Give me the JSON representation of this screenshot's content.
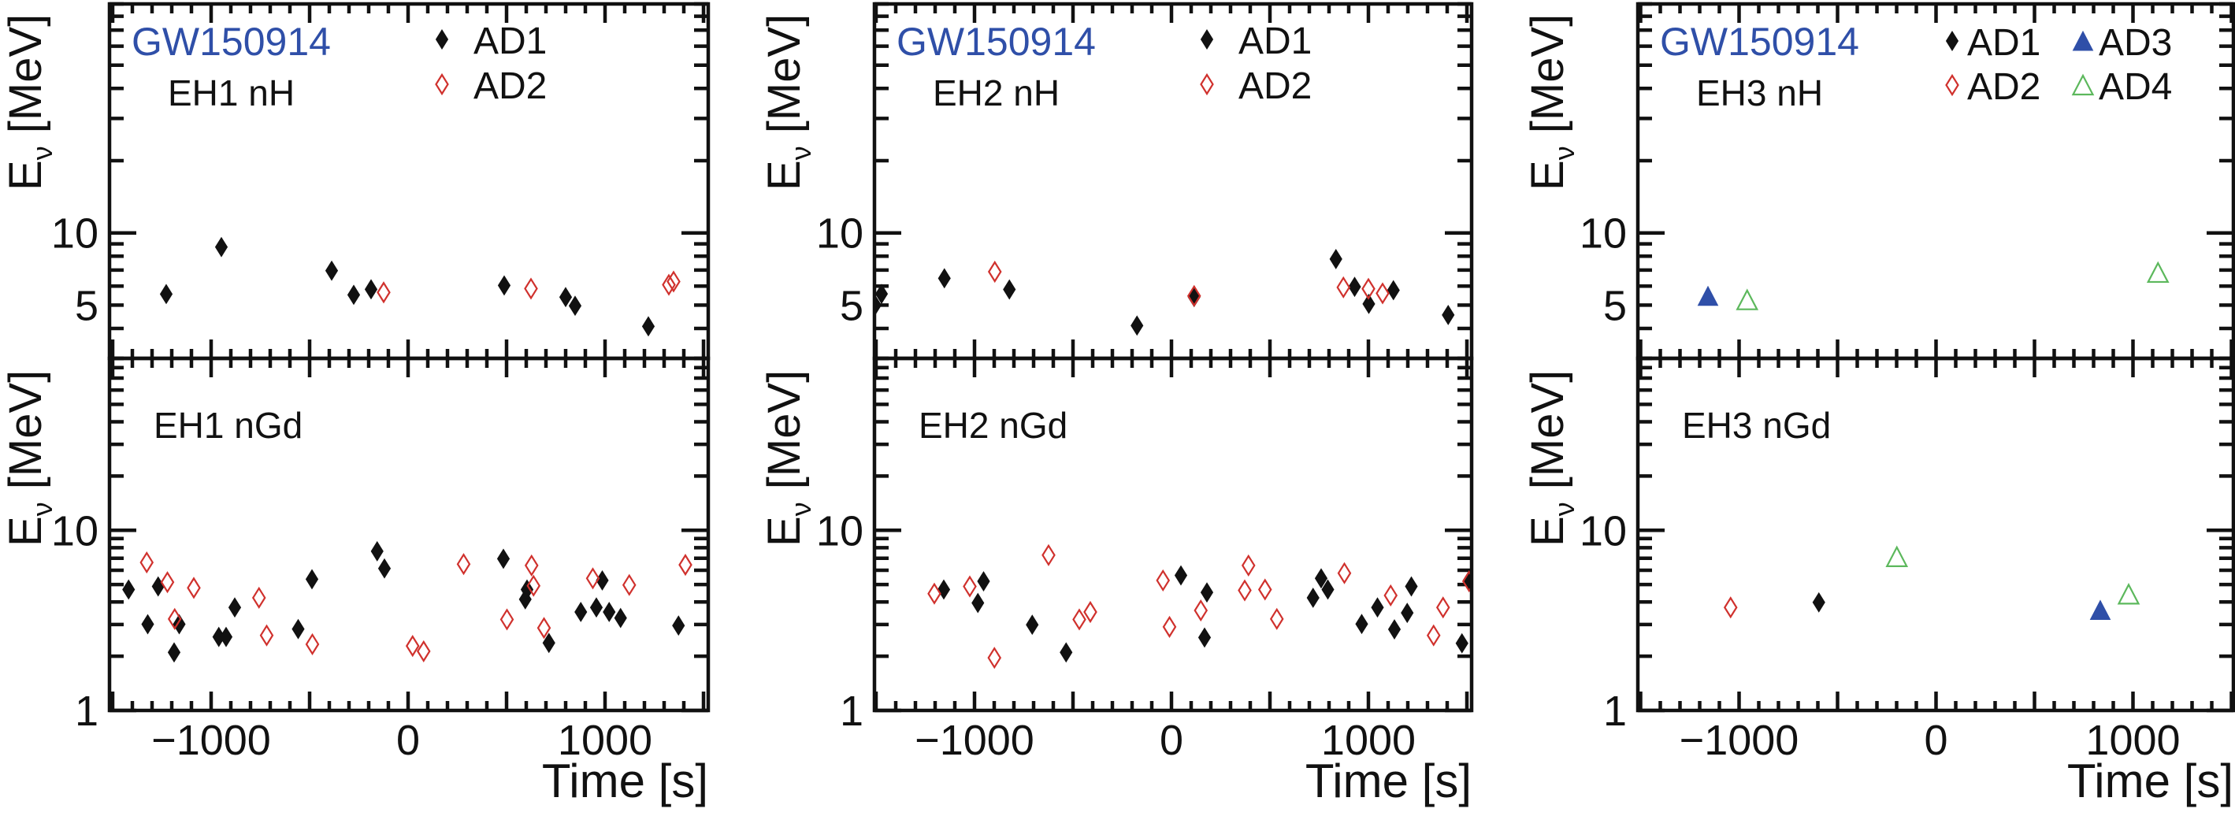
{
  "chart_data": [
    {
      "type": "scatter",
      "panel": "EH1 nH",
      "title": "GW150914",
      "label": "EH1 nH",
      "xlabel": "Time [s]",
      "ylabel": "Eν [MeV]",
      "yscale": "log",
      "xlim": [
        -1516,
        1524
      ],
      "ylim": [
        3,
        90
      ],
      "xticks": [
        -1000,
        0,
        1000
      ],
      "xtick_labels": [
        "−1000",
        "0",
        "1000"
      ],
      "yticks": [
        5,
        10
      ],
      "ytick_labels": [
        "5",
        "10"
      ],
      "legend": [
        "AD1",
        "AD2"
      ],
      "legend_position": "top",
      "series": [
        {
          "name": "AD1",
          "marker": "filled-diamond",
          "color": "#111111",
          "x": [
            -1228,
            -948,
            -388,
            -276,
            -188,
            488,
            800,
            848,
            1220
          ],
          "y": [
            5.56,
            8.73,
            6.96,
            5.52,
            5.82,
            6.04,
            5.4,
            4.97,
            4.08
          ]
        },
        {
          "name": "AD2",
          "marker": "open-diamond",
          "color": "#d0312d",
          "x": [
            -124,
            624,
            1324,
            1348
          ],
          "y": [
            5.65,
            5.86,
            6.08,
            6.27
          ]
        }
      ]
    },
    {
      "type": "scatter",
      "panel": "EH1 nGd",
      "label": "EH1 nGd",
      "xlabel": "Time [s]",
      "ylabel": "Eν [MeV]",
      "yscale": "log",
      "xlim": [
        -1516,
        1524
      ],
      "ylim": [
        1,
        90
      ],
      "xticks": [
        -1000,
        0,
        1000
      ],
      "xtick_labels": [
        "−1000",
        "0",
        "1000"
      ],
      "yticks": [
        1,
        10
      ],
      "ytick_labels": [
        "1",
        "10"
      ],
      "series": [
        {
          "name": "AD1",
          "marker": "filled-diamond",
          "color": "#111111",
          "x": [
            -1419,
            -1322,
            -1269,
            -1188,
            -1162,
            -961,
            -924,
            -880,
            -558,
            -488,
            -157,
            -120,
            484,
            595,
            604,
            715,
            877,
            956,
            986,
            1021,
            1079,
            1373
          ],
          "y": [
            4.69,
            3.01,
            4.88,
            2.1,
            3.01,
            2.56,
            2.56,
            3.73,
            2.83,
            5.35,
            7.65,
            6.14,
            6.95,
            4.14,
            4.69,
            2.37,
            3.52,
            3.73,
            5.27,
            3.52,
            3.26,
            2.96
          ]
        },
        {
          "name": "AD2",
          "marker": "open-diamond",
          "color": "#d0312d",
          "x": [
            -1327,
            -1222,
            -1088,
            -1185,
            -757,
            -718,
            -486,
            23,
            79,
            282,
            502,
            627,
            637,
            690,
            938,
            1123,
            1408
          ],
          "y": [
            6.63,
            5.15,
            4.79,
            3.22,
            4.22,
            2.61,
            2.33,
            2.28,
            2.13,
            6.49,
            3.2,
            6.38,
            4.92,
            2.87,
            5.41,
            4.97,
            6.43
          ]
        }
      ]
    },
    {
      "type": "scatter",
      "panel": "EH2 nH",
      "title": "GW150914",
      "label": "EH2 nH",
      "xlabel": "Time [s]",
      "ylabel": "Eν [MeV]",
      "yscale": "log",
      "xlim": [
        -1508,
        1524
      ],
      "ylim": [
        3,
        90
      ],
      "xticks": [
        -1000,
        0,
        1000
      ],
      "xtick_labels": [
        "−1000",
        "0",
        "1000"
      ],
      "yticks": [
        5,
        10
      ],
      "ytick_labels": [
        "5",
        "10"
      ],
      "legend": [
        "AD1",
        "AD2"
      ],
      "legend_position": "top",
      "series": [
        {
          "name": "AD1",
          "marker": "filled-diamond",
          "color": "#111111",
          "x": [
            -1504,
            -1472,
            -1153,
            -823,
            -175,
            115,
            835,
            930,
            1002,
            1127,
            1405
          ],
          "y": [
            5.0,
            5.57,
            6.47,
            5.81,
            4.11,
            5.4,
            7.78,
            5.96,
            5.06,
            5.77,
            4.55
          ]
        },
        {
          "name": "AD2",
          "marker": "open-diamond",
          "color": "#d0312d",
          "x": [
            -897,
            115,
            873,
            1000,
            1072
          ],
          "y": [
            6.89,
            5.46,
            5.93,
            5.85,
            5.6
          ]
        }
      ]
    },
    {
      "type": "scatter",
      "panel": "EH2 nGd",
      "label": "EH2 nGd",
      "xlabel": "Time [s]",
      "ylabel": "Eν [MeV]",
      "yscale": "log",
      "xlim": [
        -1508,
        1524
      ],
      "ylim": [
        1,
        90
      ],
      "xticks": [
        -1000,
        0,
        1000
      ],
      "xtick_labels": [
        "−1000",
        "0",
        "1000"
      ],
      "yticks": [
        1,
        10
      ],
      "ytick_labels": [
        "1",
        "10"
      ],
      "series": [
        {
          "name": "AD1",
          "marker": "filled-diamond",
          "color": "#111111",
          "x": [
            -1156,
            -983,
            -954,
            -707,
            -535,
            48,
            180,
            168,
            719,
            760,
            794,
            966,
            1046,
            1132,
            1197,
            1218,
            1475,
            1511
          ],
          "y": [
            4.69,
            3.95,
            5.21,
            2.99,
            2.1,
            5.62,
            4.52,
            2.54,
            4.22,
            5.41,
            4.69,
            3.02,
            3.73,
            2.82,
            3.48,
            4.88,
            2.36,
            5.27
          ]
        },
        {
          "name": "AD2",
          "marker": "open-diamond",
          "color": "#d0312d",
          "x": [
            -1204,
            -1024,
            -899,
            -624,
            -468,
            -412,
            -43,
            -10,
            149,
            372,
            391,
            475,
            535,
            878,
            1113,
            1331,
            1379,
            1511
          ],
          "y": [
            4.45,
            4.88,
            1.96,
            7.28,
            3.2,
            3.52,
            5.27,
            2.91,
            3.59,
            4.64,
            6.38,
            4.69,
            3.22,
            5.78,
            4.35,
            2.61,
            3.73,
            5.21
          ]
        }
      ]
    },
    {
      "type": "scatter",
      "panel": "EH3 nH",
      "title": "GW150914",
      "label": "EH3 nH",
      "xlabel": "Time [s]",
      "ylabel": "Eν [MeV]",
      "yscale": "log",
      "xlim": [
        -1514,
        1510
      ],
      "ylim": [
        3,
        90
      ],
      "xticks": [
        -1000,
        0,
        1000
      ],
      "xtick_labels": [
        "−1000",
        "0",
        "1000"
      ],
      "yticks": [
        5,
        10
      ],
      "ytick_labels": [
        "5",
        "10"
      ],
      "legend": [
        "AD1",
        "AD2",
        "AD3",
        "AD4"
      ],
      "legend_position": "top-right",
      "series": [
        {
          "name": "AD1",
          "marker": "filled-diamond",
          "color": "#111111",
          "x": [],
          "y": []
        },
        {
          "name": "AD2",
          "marker": "open-diamond",
          "color": "#d0312d",
          "x": [],
          "y": []
        },
        {
          "name": "AD3",
          "marker": "filled-triangle",
          "color": "#2f4fa8",
          "x": [
            -1158
          ],
          "y": [
            5.46
          ]
        },
        {
          "name": "AD4",
          "marker": "open-triangle",
          "color": "#5cb85c",
          "x": [
            -959,
            1127
          ],
          "y": [
            5.26,
            6.84
          ]
        }
      ]
    },
    {
      "type": "scatter",
      "panel": "EH3 nGd",
      "label": "EH3 nGd",
      "xlabel": "Time [s]",
      "ylabel": "Eν [MeV]",
      "yscale": "log",
      "xlim": [
        -1514,
        1510
      ],
      "ylim": [
        1,
        90
      ],
      "xticks": [
        -1000,
        0,
        1000
      ],
      "xtick_labels": [
        "−1000",
        "0",
        "1000"
      ],
      "yticks": [
        1,
        10
      ],
      "ytick_labels": [
        "1",
        "10"
      ],
      "series": [
        {
          "name": "AD1",
          "marker": "filled-diamond",
          "color": "#111111",
          "x": [
            -595
          ],
          "y": [
            3.98
          ]
        },
        {
          "name": "AD2",
          "marker": "open-diamond",
          "color": "#d0312d",
          "x": [
            -1043
          ],
          "y": [
            3.73
          ]
        },
        {
          "name": "AD3",
          "marker": "filled-triangle",
          "color": "#2f4fa8",
          "x": [
            834
          ],
          "y": [
            3.61
          ]
        },
        {
          "name": "AD4",
          "marker": "open-triangle",
          "color": "#5cb85c",
          "x": [
            -199,
            978
          ],
          "y": [
            7.13,
            4.42
          ]
        }
      ]
    }
  ],
  "colors": {
    "title": "#2f4fa8",
    "AD1": "#111111",
    "AD2": "#d0312d",
    "AD3": "#2f4fa8",
    "AD4": "#5cb85c"
  }
}
